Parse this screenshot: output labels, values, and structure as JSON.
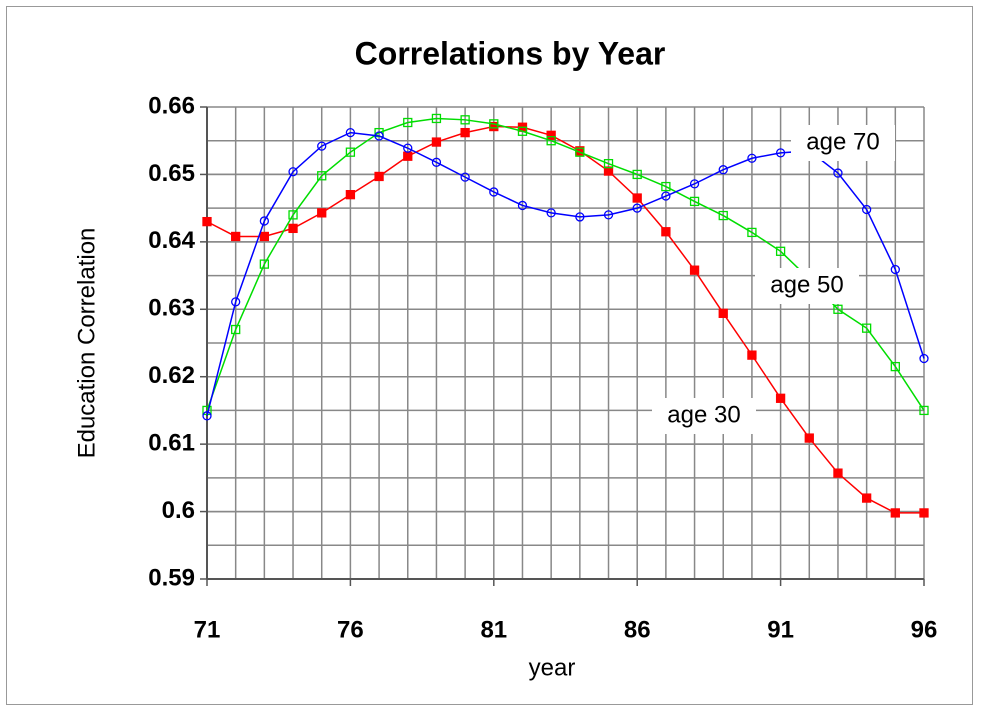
{
  "chart_data": {
    "type": "line",
    "title": "Correlations by Year",
    "xlabel": "year",
    "ylabel": "Education Correlation",
    "x": [
      71,
      72,
      73,
      74,
      75,
      76,
      77,
      78,
      79,
      80,
      81,
      82,
      83,
      84,
      85,
      86,
      87,
      88,
      89,
      90,
      91,
      92,
      93,
      94,
      95,
      96
    ],
    "series": [
      {
        "name": "age 30",
        "color": "#ff0000",
        "marker": "filled-square",
        "values": [
          0.643,
          0.6408,
          0.6408,
          0.642,
          0.6443,
          0.647,
          0.6497,
          0.6527,
          0.6548,
          0.6562,
          0.6571,
          0.657,
          0.6558,
          0.6535,
          0.6505,
          0.6465,
          0.6415,
          0.6358,
          0.6294,
          0.6232,
          0.6168,
          0.6109,
          0.6057,
          0.602,
          0.5998,
          0.5998
        ]
      },
      {
        "name": "age 50",
        "color": "#00dd00",
        "marker": "open-square",
        "values": [
          0.615,
          0.627,
          0.6367,
          0.644,
          0.6498,
          0.6533,
          0.6562,
          0.6577,
          0.6583,
          0.6581,
          0.6575,
          0.6564,
          0.655,
          0.6533,
          0.6516,
          0.65,
          0.6482,
          0.646,
          0.6439,
          0.6414,
          0.6386,
          0.6345,
          0.63,
          0.6272,
          0.6215,
          0.615
        ]
      },
      {
        "name": "age 70",
        "color": "#0000ff",
        "marker": "open-circle",
        "values": [
          0.6142,
          0.6311,
          0.6431,
          0.6504,
          0.6542,
          0.6562,
          0.6557,
          0.6539,
          0.6518,
          0.6496,
          0.6474,
          0.6454,
          0.6443,
          0.6437,
          0.644,
          0.645,
          0.6468,
          0.6486,
          0.6507,
          0.6524,
          0.6532,
          0.6535,
          0.6502,
          0.6448,
          0.6359,
          0.6227
        ]
      }
    ],
    "xlim": [
      71,
      96
    ],
    "xticks": [
      71,
      76,
      81,
      86,
      91,
      96
    ],
    "ylim": [
      0.59,
      0.66
    ],
    "yticks": [
      0.59,
      0.6,
      0.61,
      0.62,
      0.63,
      0.64,
      0.65,
      0.66
    ],
    "ygrid": [
      0.595,
      0.6,
      0.605,
      0.61,
      0.615,
      0.62,
      0.625,
      0.63,
      0.635,
      0.64,
      0.645,
      0.65,
      0.655
    ],
    "grid": true
  }
}
